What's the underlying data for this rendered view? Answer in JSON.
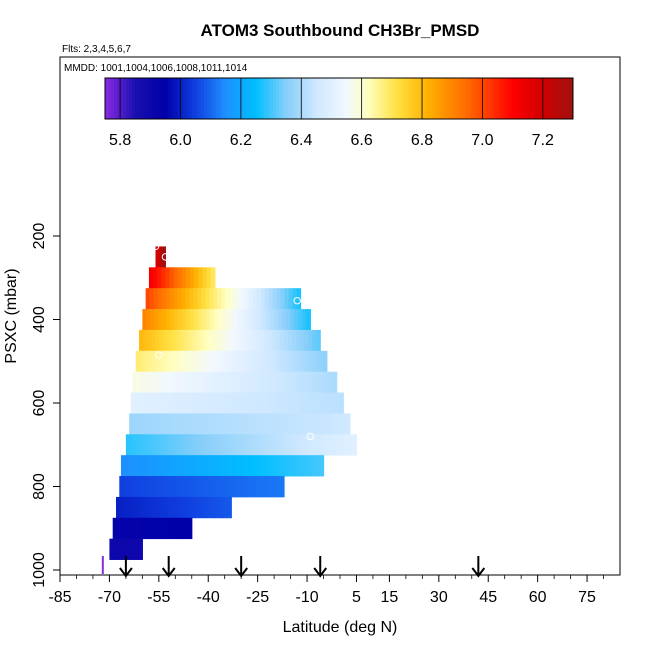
{
  "chart_data": {
    "type": "heatmap",
    "title": "ATOM3 Southbound CH3Br_PMSD",
    "subtitle_flights": "Flts: 2,3,4,5,6,7",
    "subtitle_dates": "MMDD: 1001,1004,1006,1008,1011,1014",
    "xlabel": "Latitude (deg N)",
    "ylabel": "PSXC (mbar)",
    "xlim": [
      -85,
      85
    ],
    "ylim": [
      1010,
      0
    ],
    "xticks": [
      -85,
      -70,
      -55,
      -40,
      -25,
      -10,
      5,
      15,
      30,
      45,
      60,
      75
    ],
    "xtick_labels": [
      "-85",
      "-70",
      "-55",
      "-40",
      "-25",
      "-10",
      "5",
      "15",
      "30",
      "45",
      "60",
      "75"
    ],
    "yticks": [
      200,
      400,
      600,
      800,
      1000
    ],
    "ytick_labels": [
      "200",
      "400",
      "600",
      "800",
      "1000"
    ],
    "colorbar": {
      "min": 5.75,
      "max": 7.3,
      "ticks": [
        5.8,
        6.0,
        6.2,
        6.4,
        6.6,
        6.8,
        7.0,
        7.2
      ],
      "tick_labels": [
        "5.8",
        "6.0",
        "6.2",
        "6.4",
        "6.6",
        "6.8",
        "7.0",
        "7.2"
      ],
      "stops": [
        [
          5.75,
          "#8a2be2"
        ],
        [
          5.85,
          "#1a0fb0"
        ],
        [
          5.95,
          "#0000a8"
        ],
        [
          6.05,
          "#1040e0"
        ],
        [
          6.15,
          "#1e90ff"
        ],
        [
          6.25,
          "#00bfff"
        ],
        [
          6.35,
          "#87cefa"
        ],
        [
          6.45,
          "#cfe8ff"
        ],
        [
          6.55,
          "#f2f8ff"
        ],
        [
          6.62,
          "#ffffc0"
        ],
        [
          6.72,
          "#ffe040"
        ],
        [
          6.82,
          "#ffb000"
        ],
        [
          6.95,
          "#ff6a00"
        ],
        [
          7.1,
          "#ff0000"
        ],
        [
          7.2,
          "#d00000"
        ],
        [
          7.3,
          "#a01010"
        ]
      ]
    },
    "rows": [
      {
        "p": 250,
        "x0": -56,
        "x1": -53,
        "v0": 7.2,
        "v1": 7.28
      },
      {
        "p": 300,
        "x0": -58,
        "x1": -38,
        "v0": 7.12,
        "v1": 6.7
      },
      {
        "p": 350,
        "x0": -59,
        "x1": -12,
        "v0": 7.0,
        "v1": 6.27
      },
      {
        "p": 400,
        "x0": -60,
        "x1": -9,
        "v0": 6.9,
        "v1": 6.27
      },
      {
        "p": 450,
        "x0": -61,
        "x1": -6,
        "v0": 6.8,
        "v1": 6.32
      },
      {
        "p": 500,
        "x0": -62,
        "x1": -4,
        "v0": 6.68,
        "v1": 6.36
      },
      {
        "p": 550,
        "x0": -63,
        "x1": -1,
        "v0": 6.58,
        "v1": 6.4
      },
      {
        "p": 600,
        "x0": -63.5,
        "x1": 1,
        "v0": 6.5,
        "v1": 6.42
      },
      {
        "p": 650,
        "x0": -64,
        "x1": 3,
        "v0": 6.38,
        "v1": 6.45
      },
      {
        "p": 700,
        "x0": -65,
        "x1": 5,
        "v0": 6.28,
        "v1": 6.5
      },
      {
        "p": 750,
        "x0": -66.5,
        "x1": -5,
        "v0": 6.15,
        "v1": 6.3
      },
      {
        "p": 800,
        "x0": -67,
        "x1": -17,
        "v0": 6.05,
        "v1": 6.12
      },
      {
        "p": 850,
        "x0": -68,
        "x1": -33,
        "v0": 6.0,
        "v1": 6.08
      },
      {
        "p": 900,
        "x0": -69,
        "x1": -45,
        "v0": 5.93,
        "v1": 5.95
      },
      {
        "p": 950,
        "x0": -70,
        "x1": -60,
        "v0": 5.9,
        "v1": 5.9
      }
    ],
    "circles": [
      {
        "lat": -56,
        "p": 225
      },
      {
        "lat": -53,
        "p": 250
      },
      {
        "lat": -13,
        "p": 355
      },
      {
        "lat": -55,
        "p": 485
      },
      {
        "lat": -9,
        "p": 680
      }
    ],
    "purple_mark": {
      "lat": -72,
      "p": 1000
    },
    "arrows_lat": [
      -65,
      -52,
      -30,
      -6,
      42
    ]
  }
}
